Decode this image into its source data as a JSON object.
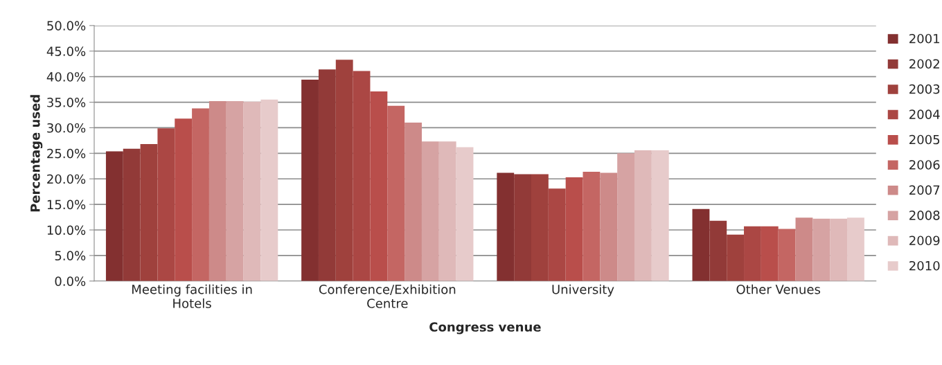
{
  "chart_data": {
    "type": "bar",
    "xlabel": "Congress venue",
    "ylabel": "Percentage used",
    "categories": [
      "Meeting facilities in\nHotels",
      "Conference/Exhibition\nCentre",
      "University",
      "Other Venues"
    ],
    "series": [
      {
        "name": "2001",
        "color": "#833030",
        "values": [
          25.4,
          39.4,
          21.2,
          14.1
        ]
      },
      {
        "name": "2002",
        "color": "#923a38",
        "values": [
          25.9,
          41.4,
          20.9,
          11.8
        ]
      },
      {
        "name": "2003",
        "color": "#9f413d",
        "values": [
          26.8,
          43.3,
          20.9,
          9.1
        ]
      },
      {
        "name": "2004",
        "color": "#ab4744",
        "values": [
          29.9,
          41.1,
          18.1,
          10.7
        ]
      },
      {
        "name": "2005",
        "color": "#b94e4b",
        "values": [
          31.8,
          37.1,
          20.3,
          10.7
        ]
      },
      {
        "name": "2006",
        "color": "#c46663",
        "values": [
          33.8,
          34.3,
          21.4,
          10.2
        ]
      },
      {
        "name": "2007",
        "color": "#cd8a89",
        "values": [
          35.2,
          31.0,
          21.2,
          12.4
        ]
      },
      {
        "name": "2008",
        "color": "#d6a3a3",
        "values": [
          35.2,
          27.3,
          25.0,
          12.2
        ]
      },
      {
        "name": "2009",
        "color": "#dfb9b9",
        "values": [
          35.1,
          27.3,
          25.6,
          12.2
        ]
      },
      {
        "name": "2010",
        "color": "#e7cbcb",
        "values": [
          35.5,
          26.2,
          25.6,
          12.4
        ]
      }
    ],
    "ylim": [
      0,
      50
    ],
    "yticks": [
      {
        "value": 0,
        "label": "0.0%"
      },
      {
        "value": 5,
        "label": "5.0%"
      },
      {
        "value": 10,
        "label": "10.0%"
      },
      {
        "value": 15,
        "label": "15.0%"
      },
      {
        "value": 20,
        "label": "20.0%"
      },
      {
        "value": 25,
        "label": "25.0%"
      },
      {
        "value": 30,
        "label": "30.0%"
      },
      {
        "value": 35,
        "label": "35.0%"
      },
      {
        "value": 40,
        "label": "40.0%"
      },
      {
        "value": 45,
        "label": "45.0%"
      },
      {
        "value": 50,
        "label": "50.0%"
      }
    ],
    "grid": "y",
    "legend": "right"
  }
}
